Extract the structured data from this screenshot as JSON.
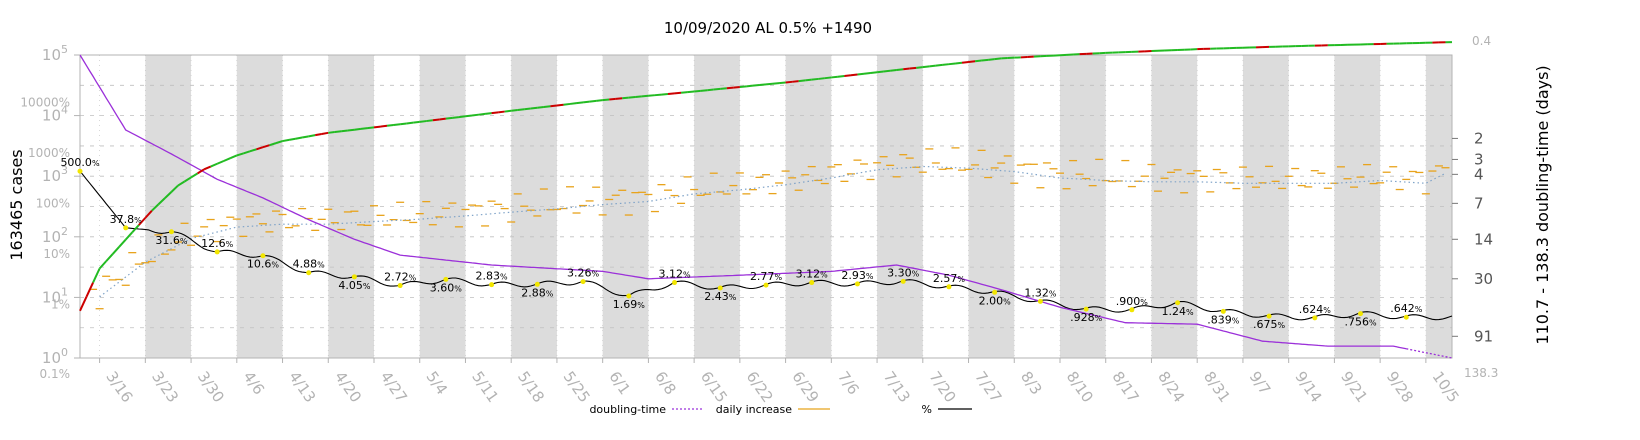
{
  "chart_data": {
    "type": "line",
    "title": "10/09/2020 AL 0.5% +1490",
    "ylabel_left": "163465 cases",
    "ylabel_right": "110.7 - 138.3 doubling-time (days)",
    "cases_ticks": [
      "10^0",
      "10^1",
      "10^2",
      "10^3",
      "10^4",
      "10^5"
    ],
    "cases_tick_values": [
      1,
      10,
      100,
      1000,
      10000,
      100000
    ],
    "pct_ticks": [
      "0.1%",
      "1%",
      "10%",
      "100%",
      "1000%",
      "10000%"
    ],
    "pct_tick_values": [
      0.1,
      1,
      10,
      100,
      1000,
      10000
    ],
    "doubling_ticks": [
      "2",
      "3",
      "4",
      "7",
      "14",
      "30",
      "91"
    ],
    "doubling_tick_values": [
      2,
      3,
      4,
      7,
      14,
      30,
      91
    ],
    "doubling_range_labels": [
      "0.4",
      "138.3"
    ],
    "x_ticks": [
      "3/16",
      "3/23",
      "3/30",
      "4/6",
      "4/13",
      "4/20",
      "4/27",
      "5/4",
      "5/11",
      "5/18",
      "5/25",
      "6/1",
      "6/8",
      "6/15",
      "6/22",
      "6/29",
      "7/6",
      "7/13",
      "7/20",
      "7/27",
      "8/3",
      "8/10",
      "8/17",
      "8/24",
      "8/31",
      "9/7",
      "9/14",
      "9/21",
      "9/28",
      "10/5"
    ],
    "x_range": [
      "2020-03-13",
      "2020-10-09"
    ],
    "cases_ylim": [
      1,
      100000
    ],
    "scale": "log",
    "grid": true,
    "legend": [
      {
        "label": "doubling-time",
        "color": "#9b30d9",
        "style": "dotted"
      },
      {
        "label": "daily increase",
        "color": "#e8a31c",
        "style": "solid"
      },
      {
        "label": "%",
        "color": "#000000",
        "style": "solid"
      }
    ],
    "legend_position": "bottom",
    "pct_annotations": [
      {
        "date": "2020-03-13",
        "label": "500.0",
        "value": 500.0
      },
      {
        "date": "2020-03-20",
        "label": "37.8",
        "value": 37.8
      },
      {
        "date": "2020-03-27",
        "label": "31.6",
        "value": 31.6
      },
      {
        "date": "2020-04-03",
        "label": "12.6",
        "value": 12.6
      },
      {
        "date": "2020-04-10",
        "label": "10.6",
        "value": 10.6
      },
      {
        "date": "2020-04-17",
        "label": "4.88",
        "value": 4.88
      },
      {
        "date": "2020-04-24",
        "label": "4.05",
        "value": 4.05
      },
      {
        "date": "2020-05-01",
        "label": "2.72",
        "value": 2.72
      },
      {
        "date": "2020-05-08",
        "label": "3.60",
        "value": 3.6
      },
      {
        "date": "2020-05-15",
        "label": "2.83",
        "value": 2.83
      },
      {
        "date": "2020-05-22",
        "label": "2.88",
        "value": 2.88
      },
      {
        "date": "2020-05-29",
        "label": "3.26",
        "value": 3.26
      },
      {
        "date": "2020-06-05",
        "label": "1.69",
        "value": 1.69
      },
      {
        "date": "2020-06-12",
        "label": "3.12",
        "value": 3.12
      },
      {
        "date": "2020-06-19",
        "label": "2.43",
        "value": 2.43
      },
      {
        "date": "2020-06-26",
        "label": "2.77",
        "value": 2.77
      },
      {
        "date": "2020-07-03",
        "label": "3.12",
        "value": 3.12
      },
      {
        "date": "2020-07-10",
        "label": "2.93",
        "value": 2.93
      },
      {
        "date": "2020-07-17",
        "label": "3.30",
        "value": 3.3
      },
      {
        "date": "2020-07-24",
        "label": "2.57",
        "value": 2.57
      },
      {
        "date": "2020-07-31",
        "label": "2.00",
        "value": 2.0
      },
      {
        "date": "2020-08-07",
        "label": "1.32",
        "value": 1.32
      },
      {
        "date": "2020-08-14",
        "label": ".928",
        "value": 0.928
      },
      {
        "date": "2020-08-21",
        "label": ".900",
        "value": 0.9
      },
      {
        "date": "2020-08-28",
        "label": "1.24",
        "value": 1.24
      },
      {
        "date": "2020-09-04",
        "label": ".839",
        "value": 0.839
      },
      {
        "date": "2020-09-11",
        "label": ".675",
        "value": 0.675
      },
      {
        "date": "2020-09-18",
        "label": ".624",
        "value": 0.624
      },
      {
        "date": "2020-09-25",
        "label": ".756",
        "value": 0.756
      },
      {
        "date": "2020-10-02",
        "label": ".642",
        "value": 0.642
      }
    ],
    "cumulative_cases": {
      "dates": [
        "2020-03-13",
        "2020-03-16",
        "2020-03-20",
        "2020-03-24",
        "2020-03-28",
        "2020-04-01",
        "2020-04-06",
        "2020-04-13",
        "2020-04-20",
        "2020-05-01",
        "2020-05-15",
        "2020-06-01",
        "2020-06-15",
        "2020-07-01",
        "2020-07-15",
        "2020-08-01",
        "2020-08-15",
        "2020-09-01",
        "2020-09-15",
        "2020-10-01",
        "2020-10-09"
      ],
      "values": [
        6,
        30,
        90,
        270,
        700,
        1300,
        2200,
        3800,
        5200,
        7200,
        11000,
        18000,
        25000,
        37000,
        55000,
        88000,
        106000,
        126000,
        140000,
        155000,
        163465
      ]
    },
    "daily_increase": {
      "dates": [
        "2020-03-16",
        "2020-03-23",
        "2020-03-30",
        "2020-04-06",
        "2020-04-13",
        "2020-04-20",
        "2020-04-27",
        "2020-05-04",
        "2020-05-11",
        "2020-05-18",
        "2020-05-25",
        "2020-06-01",
        "2020-06-08",
        "2020-06-15",
        "2020-06-22",
        "2020-06-29",
        "2020-07-06",
        "2020-07-13",
        "2020-07-20",
        "2020-07-27",
        "2020-08-03",
        "2020-08-10",
        "2020-08-17",
        "2020-08-24",
        "2020-08-31",
        "2020-09-07",
        "2020-09-14",
        "2020-09-21",
        "2020-09-28",
        "2020-10-05",
        "2020-10-09"
      ],
      "values": [
        12,
        45,
        110,
        170,
        190,
        190,
        210,
        230,
        260,
        300,
        340,
        400,
        450,
        600,
        700,
        850,
        1100,
        1500,
        1700,
        1600,
        1400,
        1100,
        1000,
        950,
        950,
        900,
        900,
        900,
        1000,
        900,
        1490
      ]
    },
    "doubling_time_days": {
      "dates": [
        "2020-03-13",
        "2020-03-20",
        "2020-03-27",
        "2020-04-03",
        "2020-04-10",
        "2020-04-17",
        "2020-04-24",
        "2020-05-01",
        "2020-05-15",
        "2020-06-01",
        "2020-06-08",
        "2020-06-22",
        "2020-07-06",
        "2020-07-16",
        "2020-07-24",
        "2020-08-01",
        "2020-08-10",
        "2020-08-20",
        "2020-08-31",
        "2020-09-10",
        "2020-09-20",
        "2020-09-30",
        "2020-10-09"
      ],
      "values": [
        0.4,
        1.7,
        2.7,
        4.4,
        6.3,
        9.6,
        14,
        19,
        23,
        26,
        30,
        28,
        26,
        23,
        28,
        37,
        52,
        70,
        72,
        100,
        110,
        110,
        138.3
      ]
    }
  }
}
